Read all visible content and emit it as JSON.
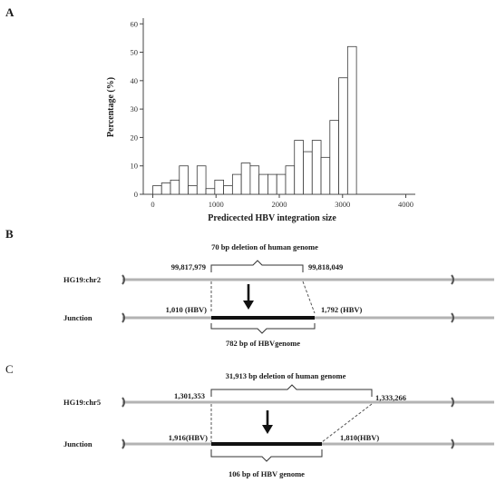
{
  "panels": {
    "a": "A",
    "b": "B",
    "c": "C"
  },
  "chart_data": {
    "type": "bar",
    "title": "",
    "xlabel": "Predicected HBV integration size",
    "ylabel": "Percentage (%)",
    "xlim": [
      -150,
      4150
    ],
    "ylim": [
      0,
      62
    ],
    "x_ticks": [
      0,
      1000,
      2000,
      3000,
      4000
    ],
    "y_ticks": [
      0,
      10,
      20,
      30,
      40,
      50,
      60
    ],
    "bin_width": 140,
    "bins": [
      {
        "x": 0,
        "value": 3
      },
      {
        "x": 140,
        "value": 4
      },
      {
        "x": 280,
        "value": 5
      },
      {
        "x": 420,
        "value": 10
      },
      {
        "x": 560,
        "value": 3
      },
      {
        "x": 700,
        "value": 10
      },
      {
        "x": 840,
        "value": 2
      },
      {
        "x": 980,
        "value": 5
      },
      {
        "x": 1120,
        "value": 3
      },
      {
        "x": 1260,
        "value": 7
      },
      {
        "x": 1400,
        "value": 11
      },
      {
        "x": 1540,
        "value": 10
      },
      {
        "x": 1680,
        "value": 7
      },
      {
        "x": 1820,
        "value": 7
      },
      {
        "x": 1960,
        "value": 7
      },
      {
        "x": 2100,
        "value": 10
      },
      {
        "x": 2240,
        "value": 19
      },
      {
        "x": 2380,
        "value": 15
      },
      {
        "x": 2520,
        "value": 19
      },
      {
        "x": 2660,
        "value": 13
      },
      {
        "x": 2800,
        "value": 26
      },
      {
        "x": 2940,
        "value": 41
      },
      {
        "x": 3080,
        "value": 52
      }
    ],
    "grid": false
  },
  "panel_b": {
    "deletion_label": "70 bp deletion of human genome",
    "top_row_label": "HG19:chr2",
    "bottom_row_label": "Junction",
    "left_coord": "99,817,979",
    "right_coord": "99,818,049",
    "left_hbv": "1,010 (HBV)",
    "right_hbv": "1,792 (HBV)",
    "insert_label": "782 bp of HBVgenome"
  },
  "panel_c": {
    "deletion_label": "31,913 bp deletion of human genome",
    "top_row_label": "HG19:chr5",
    "bottom_row_label": "Junction",
    "left_coord": "1,301,353",
    "right_coord": "1,333,266",
    "left_hbv": "1,916(HBV)",
    "right_hbv": "1,810(HBV)",
    "insert_label": "106 bp  of  HBV  genome"
  }
}
